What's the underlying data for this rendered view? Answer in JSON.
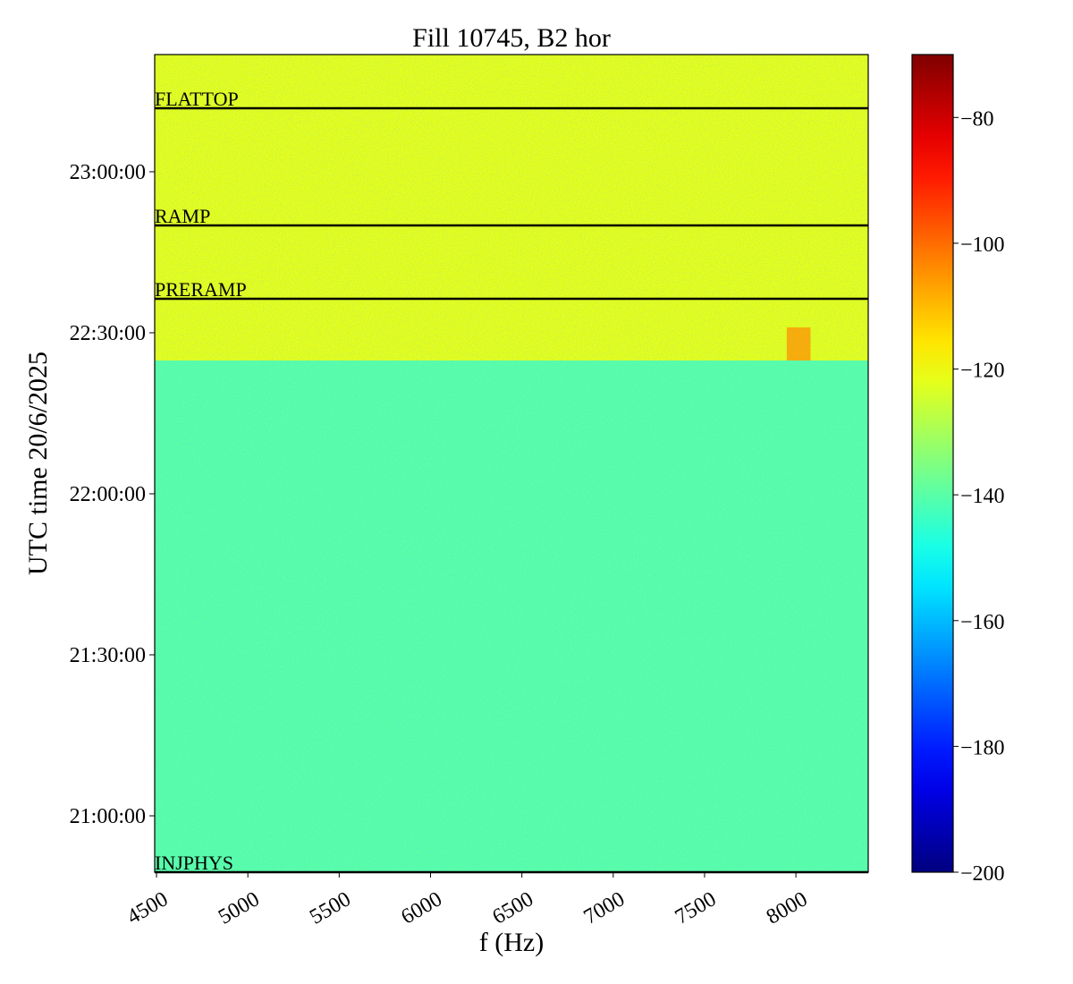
{
  "chart_data": {
    "type": "heatmap",
    "title": "Fill 10745, B2 hor",
    "xlabel": "f (Hz)",
    "ylabel": "UTC time 20/6/2025",
    "xlim": [
      4490,
      8396
    ],
    "xticks": [
      4500,
      5000,
      5500,
      6000,
      6500,
      7000,
      7500,
      8000
    ],
    "ylim": [
      "20:49:30",
      "23:21:50"
    ],
    "yticks": [
      "21:00:00",
      "21:30:00",
      "22:00:00",
      "22:30:00",
      "23:00:00"
    ],
    "colormap": "jet",
    "clim": [
      -200,
      -70
    ],
    "cticks": [
      {
        "value": -200,
        "label": "−200"
      },
      {
        "value": -180,
        "label": "−180"
      },
      {
        "value": -160,
        "label": "−160"
      },
      {
        "value": -140,
        "label": "−140"
      },
      {
        "value": -120,
        "label": "−120"
      },
      {
        "value": -100,
        "label": "−100"
      },
      {
        "value": -80,
        "label": "−80"
      }
    ],
    "regions": [
      {
        "f": [
          4490,
          8396
        ],
        "time": [
          "20:49:30",
          "22:24:50"
        ],
        "level": -140
      },
      {
        "f": [
          4490,
          8396
        ],
        "time": [
          "22:24:50",
          "23:21:50"
        ],
        "level": -122
      },
      {
        "f": [
          7950,
          8080
        ],
        "time": [
          "22:24:50",
          "22:31:00"
        ],
        "level": -108
      }
    ],
    "events": [
      {
        "name": "INJPHYS",
        "time": "20:49:30"
      },
      {
        "name": "PRERAMP",
        "time": "22:36:20"
      },
      {
        "name": "RAMP",
        "time": "22:50:00"
      },
      {
        "name": "FLATTOP",
        "time": "23:11:50"
      }
    ]
  }
}
